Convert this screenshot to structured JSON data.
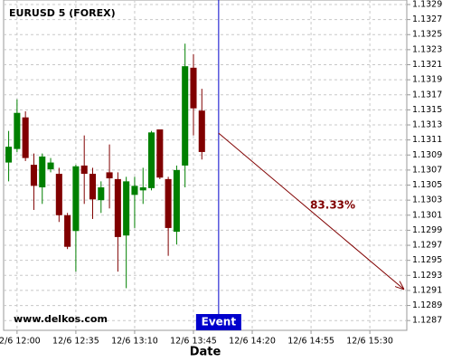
{
  "chart_data": {
    "type": "candlestick",
    "title": "EURUSD 5 (FOREX)",
    "watermark": "www.delkos.com",
    "x_label": "Date",
    "x": [
      "12/6 11:55",
      "12/6 12:00",
      "12/6 12:05",
      "12/6 12:10",
      "12/6 12:15",
      "12/6 12:20",
      "12/6 12:25",
      "12/6 12:30",
      "12/6 12:35",
      "12/6 12:40",
      "12/6 12:45",
      "12/6 12:50",
      "12/6 12:55",
      "12/6 13:00",
      "12/6 13:05",
      "12/6 13:10",
      "12/6 13:15",
      "12/6 13:20",
      "12/6 13:25",
      "12/6 13:30",
      "12/6 13:35",
      "12/6 13:40",
      "12/6 13:45",
      "12/6 13:50"
    ],
    "open": [
      1.1308,
      1.13098,
      1.1314,
      1.13077,
      1.13047,
      1.13071,
      1.13065,
      1.1301,
      1.12989,
      1.13076,
      1.13065,
      1.1303,
      1.13067,
      1.13058,
      1.12983,
      1.13037,
      1.13043,
      1.13046,
      1.13124,
      1.13058,
      1.12988,
      1.13076,
      1.13206,
      1.13149
    ],
    "high": [
      1.13122,
      1.13164,
      1.13148,
      1.13092,
      1.13092,
      1.13086,
      1.13073,
      1.13013,
      1.13077,
      1.13116,
      1.13073,
      1.13055,
      1.13104,
      1.13067,
      1.13061,
      1.13061,
      1.13073,
      1.13122,
      1.13124,
      1.13061,
      1.13076,
      1.13238,
      1.13224,
      1.13178
    ],
    "low": [
      1.13055,
      1.13094,
      1.13082,
      1.13017,
      1.13025,
      1.13067,
      1.13001,
      1.12965,
      1.12935,
      1.13025,
      1.13005,
      1.13013,
      1.13019,
      1.12935,
      1.12913,
      1.12993,
      1.13025,
      1.13043,
      1.13058,
      1.12956,
      1.12971,
      1.13047,
      1.13116,
      1.13084
    ],
    "close": [
      1.13101,
      1.13146,
      1.13086,
      1.13049,
      1.13088,
      1.1308,
      1.1301,
      1.12968,
      1.13075,
      1.13065,
      1.13031,
      1.13047,
      1.13059,
      1.12981,
      1.13055,
      1.13049,
      1.13047,
      1.1312,
      1.1306,
      1.12993,
      1.1307,
      1.13208,
      1.13152,
      1.13094
    ],
    "up_color": "#008000",
    "down_color": "#800000",
    "xlim": [
      "12/6 11:52",
      "12/6 15:52"
    ],
    "xticks": [
      "12/6 12:00",
      "12/6 12:35",
      "12/6 13:10",
      "12/6 13:45",
      "12/6 14:20",
      "12/6 14:55",
      "12/6 15:30"
    ],
    "ylim": [
      1.12857,
      1.13296
    ],
    "yticks": [
      1.1287,
      1.1289,
      1.1291,
      1.1293,
      1.1295,
      1.1297,
      1.1299,
      1.1301,
      1.1303,
      1.1305,
      1.1307,
      1.1309,
      1.1311,
      1.1313,
      1.1315,
      1.1317,
      1.1319,
      1.1321,
      1.1323,
      1.1325,
      1.1327,
      1.1329
    ],
    "grid": true,
    "event": {
      "x": "12/6 14:00",
      "label": "Event",
      "color": "#0000cc"
    },
    "arrow": {
      "text": "83.33%",
      "x": [
        "12/6 14:00",
        "12/6 15:50"
      ],
      "y": [
        1.13119,
        1.12912
      ],
      "color": "#800000"
    }
  }
}
